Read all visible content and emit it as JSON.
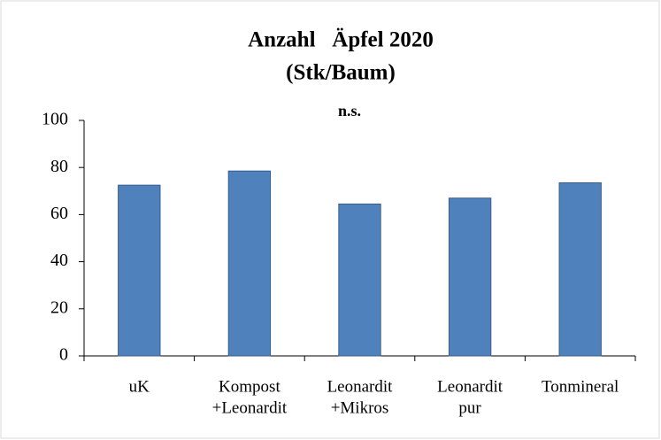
{
  "chart_data": {
    "type": "bar",
    "title": [
      "Anzahl   Äpfel 2020",
      "(Stk/Baum)"
    ],
    "annotation": "n.s.",
    "categories": [
      [
        "uK"
      ],
      [
        "Kompost",
        "+Leonardit"
      ],
      [
        "Leonardit",
        "+Mikros"
      ],
      [
        "Leonardit",
        "pur"
      ],
      [
        "Tonmineral"
      ]
    ],
    "values": [
      72.5,
      78.5,
      64.5,
      67,
      73.5
    ],
    "color": "#4f81bd",
    "ylim": [
      0,
      100
    ],
    "yticks": [
      0,
      20,
      40,
      60,
      80,
      100
    ],
    "grid": false
  }
}
